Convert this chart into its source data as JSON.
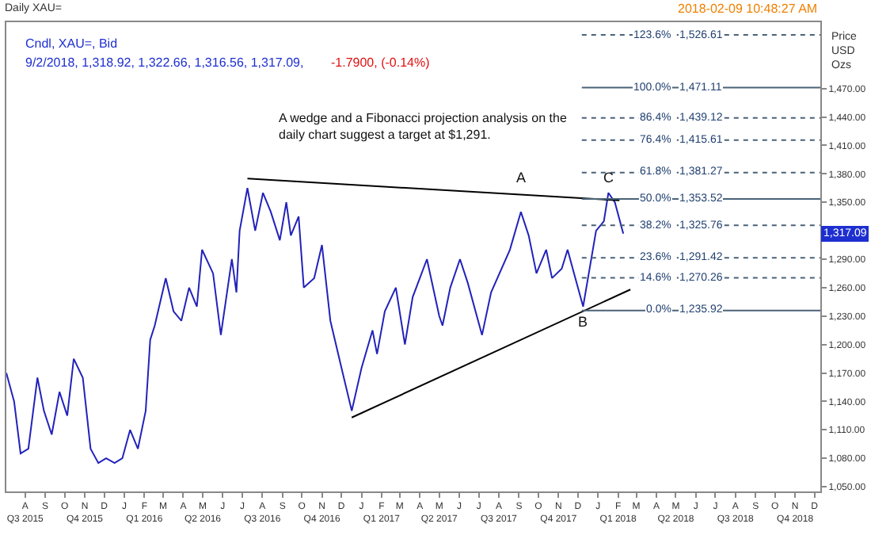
{
  "chart_data": {
    "type": "line",
    "title": "Daily XAU=",
    "ylabel": "Price\nUSD\nOzs",
    "annotations": [
      "Cndl, XAU=, Bid",
      "9/2/2018, 1,318.92, 1,322.66, 1,316.56, 1,317.09,",
      "-1.7900, (-0.14%)",
      "2018-02-09 10:48:27 AM",
      "A wedge and a Fibonacci projection analysis on the\ndaily chart suggest a target at $1,291.",
      {
        "text": "1,317.09",
        "y": 1317.09
      },
      {
        "text": "123.6%",
        "y": 1526.61
      },
      {
        "text": "100.0%",
        "y": 1471.11
      },
      {
        "text": "86.4%",
        "y": 1439.12
      },
      {
        "text": "76.4%",
        "y": 1415.61
      },
      {
        "text": "61.8%",
        "y": 1381.27
      },
      {
        "text": "50.0%",
        "y": 1353.52
      },
      {
        "text": "38.2%",
        "y": 1325.76
      },
      {
        "text": "23.6%",
        "y": 1291.42
      },
      {
        "text": "14.6%",
        "y": 1270.26
      },
      {
        "text": "0.0%",
        "y": 1235.92
      },
      {
        "text": "A",
        "x": "2017-09-04",
        "y": 1360
      },
      {
        "text": "B",
        "x": "2017-12-09",
        "y": 1240
      },
      {
        "text": "C",
        "x": "2018-01-17",
        "y": 1360
      }
    ],
    "series": [
      {
        "color": "#2222bb",
        "x": [
          "2015-07-03",
          "2015-07-15",
          "2015-07-25",
          "2015-08-06",
          "2015-08-20",
          "2015-08-30",
          "2015-09-11",
          "2015-09-23",
          "2015-10-05",
          "2015-10-15",
          "2015-10-29",
          "2015-11-10",
          "2015-11-22",
          "2015-12-04",
          "2015-12-17",
          "2015-12-29",
          "2016-01-10",
          "2016-01-22",
          "2016-02-03",
          "2016-02-10",
          "2016-02-17",
          "2016-03-05",
          "2016-03-17",
          "2016-03-29",
          "2016-04-10",
          "2016-04-22",
          "2016-04-30",
          "2016-05-17",
          "2016-05-29",
          "2016-06-15",
          "2016-06-22",
          "2016-06-27",
          "2016-07-09",
          "2016-07-21",
          "2016-08-02",
          "2016-08-14",
          "2016-08-28",
          "2016-09-07",
          "2016-09-14",
          "2016-09-26",
          "2016-10-04",
          "2016-10-20",
          "2016-11-01",
          "2016-11-14",
          "2016-12-03",
          "2016-12-17",
          "2017-01-01",
          "2017-01-18",
          "2017-01-25",
          "2017-02-06",
          "2017-02-23",
          "2017-03-09",
          "2017-03-21",
          "2017-04-12",
          "2017-05-01",
          "2017-05-06",
          "2017-05-18",
          "2017-06-02",
          "2017-06-14",
          "2017-07-06",
          "2017-07-20",
          "2017-08-18",
          "2017-09-04",
          "2017-09-16",
          "2017-09-28",
          "2017-10-13",
          "2017-10-22",
          "2017-11-06",
          "2017-11-15",
          "2017-11-27",
          "2017-12-09",
          "2017-12-29",
          "2018-01-10",
          "2018-01-17",
          "2018-01-27",
          "2018-02-09"
        ],
        "values": [
          1170,
          1140,
          1085,
          1090,
          1165,
          1130,
          1105,
          1150,
          1125,
          1185,
          1165,
          1090,
          1075,
          1080,
          1075,
          1080,
          1110,
          1090,
          1130,
          1205,
          1220,
          1270,
          1235,
          1225,
          1260,
          1240,
          1300,
          1275,
          1210,
          1290,
          1255,
          1320,
          1365,
          1320,
          1360,
          1340,
          1310,
          1350,
          1315,
          1335,
          1260,
          1270,
          1305,
          1225,
          1170,
          1130,
          1175,
          1215,
          1190,
          1235,
          1260,
          1200,
          1250,
          1290,
          1230,
          1220,
          1260,
          1290,
          1265,
          1210,
          1255,
          1300,
          1340,
          1315,
          1275,
          1300,
          1270,
          1280,
          1300,
          1270,
          1240,
          1320,
          1330,
          1360,
          1350,
          1317
        ]
      },
      {
        "type": "line",
        "color": "#000000",
        "x": [
          "2016-07-09",
          "2018-02-03"
        ],
        "values": [
          1375,
          1352
        ]
      },
      {
        "type": "line",
        "color": "#000000",
        "x": [
          "2016-12-17",
          "2018-02-20"
        ],
        "values": [
          1123,
          1258
        ]
      }
    ],
    "ref_lines": [
      {
        "axis": "y",
        "value": 1526.61,
        "label": "1,526.61",
        "color": "#4a6278",
        "line_style": "dotted"
      },
      {
        "axis": "y",
        "value": 1471.11,
        "label": "1,471.11",
        "color": "#4a6278",
        "line_style": "solid"
      },
      {
        "axis": "y",
        "value": 1439.12,
        "label": "1,439.12",
        "color": "#4a6278",
        "line_style": "dotted"
      },
      {
        "axis": "y",
        "value": 1415.61,
        "label": "1,415.61",
        "color": "#4a6278",
        "line_style": "dotted"
      },
      {
        "axis": "y",
        "value": 1381.27,
        "label": "1,381.27",
        "color": "#4a6278",
        "line_style": "dotted"
      },
      {
        "axis": "y",
        "value": 1353.52,
        "label": "1,353.52",
        "color": "#4a6278",
        "line_style": "solid"
      },
      {
        "axis": "y",
        "value": 1325.76,
        "label": "1,325.76",
        "color": "#4a6278",
        "line_style": "dotted"
      },
      {
        "axis": "y",
        "value": 1291.42,
        "label": "1,291.42",
        "color": "#4a6278",
        "line_style": "dotted"
      },
      {
        "axis": "y",
        "value": 1270.26,
        "label": "1,270.26",
        "color": "#4a6278",
        "line_style": "dotted"
      },
      {
        "axis": "y",
        "value": 1235.92,
        "label": "1,235.92",
        "color": "#4a6278",
        "line_style": "solid"
      }
    ],
    "xlim": [
      "2015-07-03",
      "2018-12-10"
    ],
    "xticks": [
      {
        "value": "2015-08-01",
        "label": "A\nQ3 2015"
      },
      {
        "value": "2015-09-01",
        "label": "S"
      },
      {
        "value": "2015-10-01",
        "label": "O"
      },
      {
        "value": "2015-11-01",
        "label": "N\nQ4 2015"
      },
      {
        "value": "2015-12-01",
        "label": "D"
      },
      {
        "value": "2016-01-01",
        "label": "J"
      },
      {
        "value": "2016-02-01",
        "label": "F\nQ1 2016"
      },
      {
        "value": "2016-03-01",
        "label": "M"
      },
      {
        "value": "2016-04-01",
        "label": "A"
      },
      {
        "value": "2016-05-01",
        "label": "M\nQ2 2016"
      },
      {
        "value": "2016-06-01",
        "label": "J"
      },
      {
        "value": "2016-07-01",
        "label": "J"
      },
      {
        "value": "2016-08-01",
        "label": "A\nQ3 2016"
      },
      {
        "value": "2016-09-01",
        "label": "S"
      },
      {
        "value": "2016-10-01",
        "label": "O"
      },
      {
        "value": "2016-11-01",
        "label": "N\nQ4 2016"
      },
      {
        "value": "2016-12-01",
        "label": "D"
      },
      {
        "value": "2017-01-01",
        "label": "J"
      },
      {
        "value": "2017-02-01",
        "label": "F\nQ1 2017"
      },
      {
        "value": "2017-03-01",
        "label": "M"
      },
      {
        "value": "2017-04-01",
        "label": "A"
      },
      {
        "value": "2017-05-01",
        "label": "M\nQ2 2017"
      },
      {
        "value": "2017-06-01",
        "label": "J"
      },
      {
        "value": "2017-07-01",
        "label": "J"
      },
      {
        "value": "2017-08-01",
        "label": "A\nQ3 2017"
      },
      {
        "value": "2017-09-01",
        "label": "S"
      },
      {
        "value": "2017-10-01",
        "label": "O"
      },
      {
        "value": "2017-11-01",
        "label": "N\nQ4 2017"
      },
      {
        "value": "2017-12-01",
        "label": "D"
      },
      {
        "value": "2018-01-01",
        "label": "J"
      },
      {
        "value": "2018-02-01",
        "label": "F\nQ1 2018"
      },
      {
        "value": "2018-03-01",
        "label": "M"
      },
      {
        "value": "2018-04-01",
        "label": "A"
      },
      {
        "value": "2018-05-01",
        "label": "M\nQ2 2018"
      },
      {
        "value": "2018-06-01",
        "label": "J"
      },
      {
        "value": "2018-07-01",
        "label": "J"
      },
      {
        "value": "2018-08-01",
        "label": "A\nQ3 2018"
      },
      {
        "value": "2018-09-01",
        "label": "S"
      },
      {
        "value": "2018-10-01",
        "label": "O"
      },
      {
        "value": "2018-11-01",
        "label": "N\nQ4 2018"
      },
      {
        "value": "2018-12-01",
        "label": "D"
      }
    ],
    "ylim": [
      1045,
      1540
    ],
    "yticks": [
      {
        "value": 1050,
        "label": "1,050.00"
      },
      {
        "value": 1080,
        "label": "1,080.00"
      },
      {
        "value": 1110,
        "label": "1,110.00"
      },
      {
        "value": 1140,
        "label": "1,140.00"
      },
      {
        "value": 1170,
        "label": "1,170.00"
      },
      {
        "value": 1200,
        "label": "1,200.00"
      },
      {
        "value": 1230,
        "label": "1,230.00"
      },
      {
        "value": 1260,
        "label": "1,260.00"
      },
      {
        "value": 1290,
        "label": "1,290.00"
      },
      {
        "value": 1320,
        "label": null
      },
      {
        "value": 1350,
        "label": "1,350.00"
      },
      {
        "value": 1380,
        "label": "1,380.00"
      },
      {
        "value": 1410,
        "label": "1,410.00"
      },
      {
        "value": 1440,
        "label": "1,440.00"
      },
      {
        "value": 1470,
        "label": "1,470.00"
      }
    ],
    "marker": "none",
    "line_style": "solid"
  }
}
